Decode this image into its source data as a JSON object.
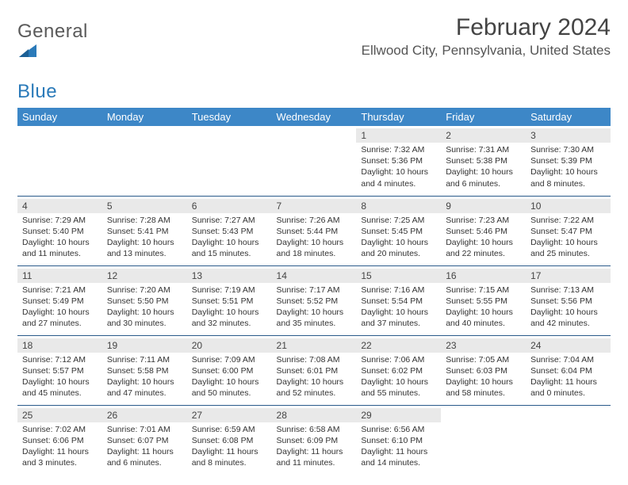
{
  "brand": {
    "general": "General",
    "blue": "Blue"
  },
  "title": "February 2024",
  "location": "Ellwood City, Pennsylvania, United States",
  "colors": {
    "header_bg": "#3d87c7",
    "header_text": "#ffffff",
    "row_divider": "#2a5a8a",
    "daynum_bg": "#e9e9e9",
    "brand_blue": "#2a7ab9",
    "body_bg": "#ffffff"
  },
  "day_names": [
    "Sunday",
    "Monday",
    "Tuesday",
    "Wednesday",
    "Thursday",
    "Friday",
    "Saturday"
  ],
  "weeks": [
    [
      {
        "empty": true
      },
      {
        "empty": true
      },
      {
        "empty": true
      },
      {
        "empty": true
      },
      {
        "num": "1",
        "sunrise": "7:32 AM",
        "sunset": "5:36 PM",
        "daylight": "10 hours and 4 minutes."
      },
      {
        "num": "2",
        "sunrise": "7:31 AM",
        "sunset": "5:38 PM",
        "daylight": "10 hours and 6 minutes."
      },
      {
        "num": "3",
        "sunrise": "7:30 AM",
        "sunset": "5:39 PM",
        "daylight": "10 hours and 8 minutes."
      }
    ],
    [
      {
        "num": "4",
        "sunrise": "7:29 AM",
        "sunset": "5:40 PM",
        "daylight": "10 hours and 11 minutes."
      },
      {
        "num": "5",
        "sunrise": "7:28 AM",
        "sunset": "5:41 PM",
        "daylight": "10 hours and 13 minutes."
      },
      {
        "num": "6",
        "sunrise": "7:27 AM",
        "sunset": "5:43 PM",
        "daylight": "10 hours and 15 minutes."
      },
      {
        "num": "7",
        "sunrise": "7:26 AM",
        "sunset": "5:44 PM",
        "daylight": "10 hours and 18 minutes."
      },
      {
        "num": "8",
        "sunrise": "7:25 AM",
        "sunset": "5:45 PM",
        "daylight": "10 hours and 20 minutes."
      },
      {
        "num": "9",
        "sunrise": "7:23 AM",
        "sunset": "5:46 PM",
        "daylight": "10 hours and 22 minutes."
      },
      {
        "num": "10",
        "sunrise": "7:22 AM",
        "sunset": "5:47 PM",
        "daylight": "10 hours and 25 minutes."
      }
    ],
    [
      {
        "num": "11",
        "sunrise": "7:21 AM",
        "sunset": "5:49 PM",
        "daylight": "10 hours and 27 minutes."
      },
      {
        "num": "12",
        "sunrise": "7:20 AM",
        "sunset": "5:50 PM",
        "daylight": "10 hours and 30 minutes."
      },
      {
        "num": "13",
        "sunrise": "7:19 AM",
        "sunset": "5:51 PM",
        "daylight": "10 hours and 32 minutes."
      },
      {
        "num": "14",
        "sunrise": "7:17 AM",
        "sunset": "5:52 PM",
        "daylight": "10 hours and 35 minutes."
      },
      {
        "num": "15",
        "sunrise": "7:16 AM",
        "sunset": "5:54 PM",
        "daylight": "10 hours and 37 minutes."
      },
      {
        "num": "16",
        "sunrise": "7:15 AM",
        "sunset": "5:55 PM",
        "daylight": "10 hours and 40 minutes."
      },
      {
        "num": "17",
        "sunrise": "7:13 AM",
        "sunset": "5:56 PM",
        "daylight": "10 hours and 42 minutes."
      }
    ],
    [
      {
        "num": "18",
        "sunrise": "7:12 AM",
        "sunset": "5:57 PM",
        "daylight": "10 hours and 45 minutes."
      },
      {
        "num": "19",
        "sunrise": "7:11 AM",
        "sunset": "5:58 PM",
        "daylight": "10 hours and 47 minutes."
      },
      {
        "num": "20",
        "sunrise": "7:09 AM",
        "sunset": "6:00 PM",
        "daylight": "10 hours and 50 minutes."
      },
      {
        "num": "21",
        "sunrise": "7:08 AM",
        "sunset": "6:01 PM",
        "daylight": "10 hours and 52 minutes."
      },
      {
        "num": "22",
        "sunrise": "7:06 AM",
        "sunset": "6:02 PM",
        "daylight": "10 hours and 55 minutes."
      },
      {
        "num": "23",
        "sunrise": "7:05 AM",
        "sunset": "6:03 PM",
        "daylight": "10 hours and 58 minutes."
      },
      {
        "num": "24",
        "sunrise": "7:04 AM",
        "sunset": "6:04 PM",
        "daylight": "11 hours and 0 minutes."
      }
    ],
    [
      {
        "num": "25",
        "sunrise": "7:02 AM",
        "sunset": "6:06 PM",
        "daylight": "11 hours and 3 minutes."
      },
      {
        "num": "26",
        "sunrise": "7:01 AM",
        "sunset": "6:07 PM",
        "daylight": "11 hours and 6 minutes."
      },
      {
        "num": "27",
        "sunrise": "6:59 AM",
        "sunset": "6:08 PM",
        "daylight": "11 hours and 8 minutes."
      },
      {
        "num": "28",
        "sunrise": "6:58 AM",
        "sunset": "6:09 PM",
        "daylight": "11 hours and 11 minutes."
      },
      {
        "num": "29",
        "sunrise": "6:56 AM",
        "sunset": "6:10 PM",
        "daylight": "11 hours and 14 minutes."
      },
      {
        "empty": true
      },
      {
        "empty": true
      }
    ]
  ],
  "labels": {
    "sunrise": "Sunrise:",
    "sunset": "Sunset:",
    "daylight": "Daylight:"
  }
}
